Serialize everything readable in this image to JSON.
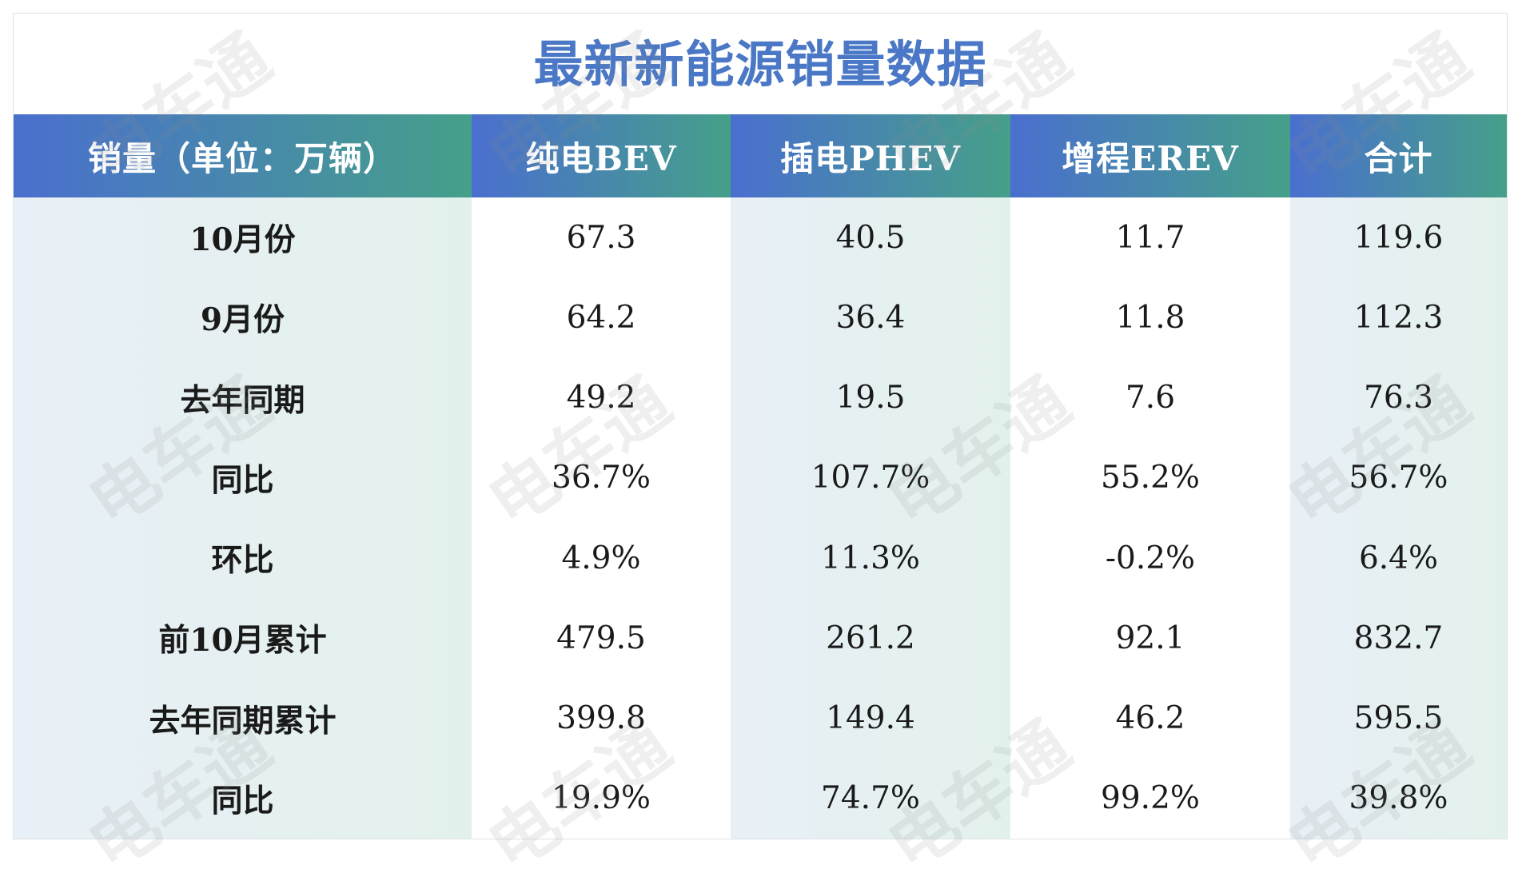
{
  "title": "最新新能源销量数据",
  "table": {
    "headers": [
      "销量（单位：万辆）",
      "纯电BEV",
      "插电PHEV",
      "增程EREV",
      "合计"
    ],
    "rows": [
      [
        "10月份",
        "67.3",
        "40.5",
        "11.7",
        "119.6"
      ],
      [
        "9月份",
        "64.2",
        "36.4",
        "11.8",
        "112.3"
      ],
      [
        "去年同期",
        "49.2",
        "19.5",
        "7.6",
        "76.3"
      ],
      [
        "同比",
        "36.7%",
        "107.7%",
        "55.2%",
        "56.7%"
      ],
      [
        "环比",
        "4.9%",
        "11.3%",
        "-0.2%",
        "6.4%"
      ],
      [
        "前10月累计",
        "479.5",
        "261.2",
        "92.1",
        "832.7"
      ],
      [
        "去年同期累计",
        "399.8",
        "149.4",
        "46.2",
        "595.5"
      ],
      [
        "同比",
        "19.9%",
        "74.7%",
        "99.2%",
        "39.8%"
      ]
    ]
  },
  "watermark": "电车通",
  "colors": {
    "title": "#4a78c6",
    "header_gradient_start": "#4a6fcf",
    "header_gradient_end": "#45a089",
    "row_tint_start": "#e8f0f7",
    "row_tint_end": "#e3f1ec"
  }
}
